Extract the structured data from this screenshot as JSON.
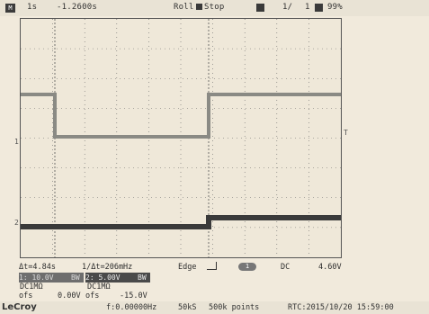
{
  "topbar": {
    "m_label": "M",
    "timebase": "1s",
    "delay": "-1.2600s",
    "mode_roll": "Roll",
    "mode_stop": "Stop",
    "count": "1/",
    "count_total": "1",
    "zoom": "99%"
  },
  "measurements": {
    "delta_t": "Δt=4.84s",
    "inv_delta_t": "1/Δt=206mHz",
    "trigger_type": "Edge",
    "trigger_coupling": "DC",
    "trigger_level": "4.60V"
  },
  "channels": [
    {
      "id": "1",
      "scale": "1: 10.0V",
      "bw": "BW",
      "coupling": "DC1MΩ",
      "offset_label": "ofs",
      "offset": "0.00V",
      "color": "#d4c89a"
    },
    {
      "id": "2",
      "scale": "2: 5.00V",
      "bw": "BW",
      "coupling": "DC1MΩ",
      "offset_label": "ofs",
      "offset": "-15.0V",
      "color": "#e8d7a0"
    }
  ],
  "trigger_channel": "1",
  "bottombar": {
    "brand": "LeCroy",
    "frequency": "f:0.00000Hz",
    "sample_rate": "50kS",
    "points": "500k points",
    "rtc": "RTC:2015/10/20 15:59:00"
  },
  "markers": {
    "ch1": "1",
    "ch2": "2",
    "trigger": "T"
  },
  "colors": {
    "trace": "#3a3a3a",
    "grid": "#666666",
    "background": "#efe8d9"
  }
}
